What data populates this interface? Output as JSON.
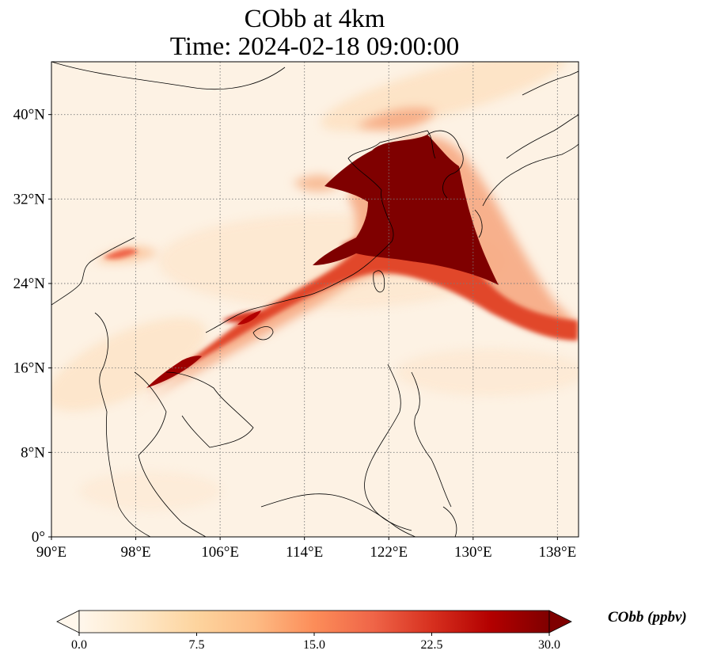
{
  "title": {
    "line1": "CObb at 4km",
    "line2": "Time: 2024-02-18 09:00:00"
  },
  "map": {
    "variable": "CObb",
    "level": "4km",
    "extent_lon": [
      90,
      140
    ],
    "extent_lat": [
      0,
      45
    ],
    "lon_ticks": [
      {
        "value": 90,
        "label": "90°E"
      },
      {
        "value": 98,
        "label": "98°E"
      },
      {
        "value": 106,
        "label": "106°E"
      },
      {
        "value": 114,
        "label": "114°E"
      },
      {
        "value": 122,
        "label": "122°E"
      },
      {
        "value": 130,
        "label": "130°E"
      },
      {
        "value": 138,
        "label": "138°E"
      }
    ],
    "lat_ticks": [
      {
        "value": 0,
        "label": "0°"
      },
      {
        "value": 8,
        "label": "8°N"
      },
      {
        "value": 16,
        "label": "16°N"
      },
      {
        "value": 24,
        "label": "24°N"
      },
      {
        "value": 32,
        "label": "32°N"
      },
      {
        "value": 40,
        "label": "40°N"
      }
    ],
    "gridlines": true,
    "coastlines": true
  },
  "colorbar": {
    "label": "CObb (ppbv)",
    "colormap": "OrRd",
    "min": 0.0,
    "max": 30.0,
    "extend": "both",
    "ticks": [
      {
        "value": 0.0,
        "label": "0.0"
      },
      {
        "value": 7.5,
        "label": "7.5"
      },
      {
        "value": 15.0,
        "label": "15.0"
      },
      {
        "value": 22.5,
        "label": "22.5"
      },
      {
        "value": 30.0,
        "label": "30.0"
      }
    ],
    "colors": [
      "#fff7ec",
      "#fee8c8",
      "#fdd49e",
      "#fdbb84",
      "#fc8d59",
      "#ef6548",
      "#d7301f",
      "#b30000",
      "#7f0000"
    ]
  }
}
